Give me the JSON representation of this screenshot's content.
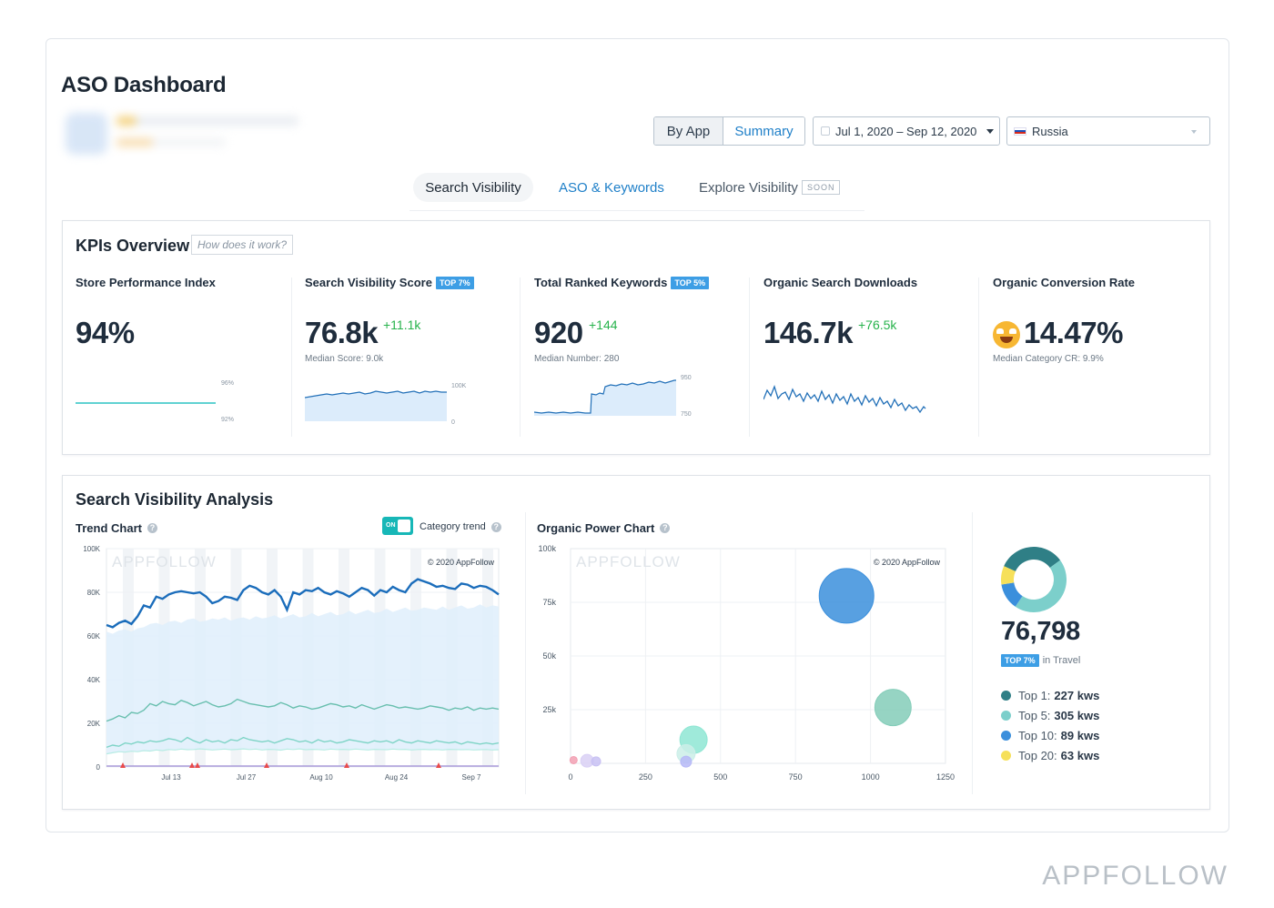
{
  "page_title": "ASO Dashboard",
  "view_toggle": {
    "by_app": "By App",
    "summary": "Summary"
  },
  "date_range": "Jul 1, 2020 – Sep 12, 2020",
  "country": "Russia",
  "tabs": {
    "search_visibility": "Search Visibility",
    "aso_keywords": "ASO & Keywords",
    "explore_visibility": "Explore Visibility",
    "soon": "SOON"
  },
  "kpi": {
    "title": "KPIs Overview",
    "how_link": "How does it work?",
    "store_performance": {
      "label": "Store Performance Index",
      "value": "94%",
      "axis_top": "96%",
      "axis_bottom": "92%"
    },
    "search_visibility": {
      "label": "Search Visibility Score",
      "badge": "TOP 7%",
      "value": "76.8k",
      "delta": "+11.1k",
      "median": "Median Score: 9.0k",
      "axis_top": "100K",
      "axis_bottom": "0"
    },
    "ranked_keywords": {
      "label": "Total Ranked Keywords",
      "badge": "TOP 5%",
      "value": "920",
      "delta": "+144",
      "median": "Median Number: 280",
      "axis_top": "950",
      "axis_bottom": "750"
    },
    "organic_downloads": {
      "label": "Organic Search Downloads",
      "value": "146.7k",
      "delta": "+76.5k"
    },
    "conversion_rate": {
      "label": "Organic Conversion Rate",
      "value": "14.47%",
      "median": "Median Category CR: 9.9%",
      "emoji": "star-struck-emoji"
    }
  },
  "analysis": {
    "title": "Search Visibility Analysis",
    "trend_chart": {
      "title": "Trend Chart",
      "toggle_label": "ON",
      "category_trend": "Category trend",
      "watermark": "APPFOLLOW",
      "copyright": "© 2020 AppFollow",
      "y_ticks": [
        "100K",
        "80K",
        "60K",
        "40K",
        "20K",
        "0"
      ],
      "x_ticks": [
        "Jul 13",
        "Jul 27",
        "Aug 10",
        "Aug 24",
        "Sep 7"
      ]
    },
    "power_chart": {
      "title": "Organic Power Chart",
      "watermark": "APPFOLLOW",
      "copyright": "© 2020 AppFollow",
      "y_ticks": [
        "100k",
        "75k",
        "50k",
        "25k"
      ],
      "x_ticks": [
        "0",
        "250",
        "500",
        "750",
        "1000",
        "1250"
      ]
    },
    "summary": {
      "value": "76,798",
      "badge": "TOP 7%",
      "category": "in Travel",
      "legend": [
        {
          "label": "Top 1:",
          "value": "227 kws",
          "color": "#2f7f86"
        },
        {
          "label": "Top 5:",
          "value": "305 kws",
          "color": "#7ccfcb"
        },
        {
          "label": "Top 10:",
          "value": "89 kws",
          "color": "#3b8fdc"
        },
        {
          "label": "Top 20:",
          "value": "63 kws",
          "color": "#f6e05a"
        }
      ]
    }
  },
  "chart_data": [
    {
      "type": "line",
      "title": "Trend Chart",
      "xlabel": "",
      "ylabel": "",
      "ylim": [
        0,
        100000
      ],
      "x_ticks": [
        "Jul 13",
        "Jul 27",
        "Aug 10",
        "Aug 24",
        "Sep 7"
      ],
      "series": [
        {
          "values": [
            65000,
            64000,
            66000,
            67000,
            65500,
            69000,
            74000,
            73000,
            78000,
            77000,
            79000,
            80000,
            80500,
            80000,
            79500,
            80000,
            78000,
            75000,
            76000,
            78000,
            77500,
            76500,
            81000,
            83000,
            82000,
            80000,
            79000,
            81000,
            78000,
            72000,
            80000,
            79000,
            81000,
            80500,
            82000,
            80000,
            79000,
            80500,
            79500,
            78000,
            80000,
            82000,
            81000,
            78500,
            81000,
            80000,
            82500,
            81000,
            80000,
            84000,
            86000,
            85000,
            84000,
            82500,
            83000,
            82000,
            81500,
            84000,
            83500,
            82000,
            83000,
            82500,
            81000,
            79000
          ]
        },
        {
          "values": [
            62000,
            61000,
            62500,
            63000,
            62000,
            63500,
            64000,
            65500,
            66000,
            65000,
            66500,
            67000,
            66000,
            67500,
            68000,
            66500,
            67000,
            68000,
            67500,
            68500,
            67000,
            68000,
            68500,
            67500,
            69000,
            68000,
            68500,
            69500,
            68000,
            69000,
            70000,
            68500,
            69000,
            70500,
            69000,
            70000,
            71000,
            69500,
            70000,
            71500,
            70000,
            71000,
            72000,
            70500,
            71000,
            72500,
            71000,
            72000,
            73000,
            71500,
            72000,
            73000,
            72500,
            72000,
            73500,
            72000,
            73000,
            74000,
            72500,
            73000,
            74500,
            73000,
            74000,
            73500
          ]
        },
        {
          "values": [
            21000,
            22000,
            23500,
            22500,
            25000,
            24500,
            26000,
            29000,
            28000,
            30000,
            29000,
            28500,
            30500,
            29500,
            28000,
            29000,
            30000,
            28500,
            27500,
            28000,
            29000,
            31000,
            30000,
            29000,
            28500,
            28000,
            27500,
            28000,
            29500,
            28500,
            27000,
            28000,
            27500,
            26500,
            27000,
            28000,
            29000,
            28500,
            27500,
            28000,
            27000,
            28500,
            27500,
            26500,
            27500,
            28500,
            28000,
            27000,
            27500,
            27000,
            26500,
            27000,
            28000,
            27500,
            27000,
            26000,
            27000,
            26500,
            27500,
            26000,
            27000,
            26500,
            27000,
            26500
          ]
        },
        {
          "values": [
            9000,
            10000,
            9500,
            11000,
            10500,
            11500,
            11000,
            12000,
            11500,
            12000,
            13000,
            12500,
            11500,
            13500,
            12000,
            11000,
            12500,
            11500,
            12000,
            11000,
            12500,
            12000,
            13500,
            12500,
            12000,
            11500,
            12000,
            11000,
            12000,
            13000,
            12500,
            11500,
            12000,
            11000,
            12500,
            11500,
            12000,
            11000,
            11500,
            12500,
            12000,
            11500,
            11000,
            12000,
            11500,
            12000,
            11000,
            12500,
            11500,
            11000,
            12000,
            11500,
            11000,
            12000,
            11500,
            11000,
            11500,
            10500,
            11500,
            11000,
            10500,
            11000,
            10500,
            11000
          ]
        },
        {
          "values": [
            6000,
            6500,
            7000,
            6800,
            7200,
            7000,
            7500,
            7300,
            7800,
            7500,
            8000,
            7800,
            8200,
            7900,
            8000,
            8300,
            8100,
            7800,
            8000,
            8200,
            7900,
            8100,
            8300,
            8000,
            8200,
            7800,
            8100,
            8000,
            7700,
            8200,
            8000,
            8300,
            7900,
            8100,
            8000,
            7800,
            8200,
            8000,
            8100,
            7900,
            8200,
            8000,
            7800,
            8100,
            8000,
            7900,
            8200,
            8000,
            8100,
            7800,
            8000,
            8100,
            7900,
            8000,
            7800,
            8100,
            8000,
            7900,
            8000,
            7800,
            7900,
            8000,
            7800,
            7900
          ]
        }
      ]
    },
    {
      "type": "scatter",
      "title": "Organic Power Chart",
      "xlabel": "",
      "ylabel": "",
      "xlim": [
        0,
        1250
      ],
      "ylim": [
        0,
        100000
      ],
      "points": [
        {
          "x": 920,
          "y": 78000,
          "size": 30,
          "color": "#3b8fdc"
        },
        {
          "x": 1075,
          "y": 26000,
          "size": 20,
          "color": "#84cdb9"
        },
        {
          "x": 410,
          "y": 11000,
          "size": 15,
          "color": "#8ee6d3"
        },
        {
          "x": 385,
          "y": 4500,
          "size": 10,
          "color": "#cbeee8"
        },
        {
          "x": 385,
          "y": 800,
          "size": 6,
          "color": "#b6b8f7"
        },
        {
          "x": 55,
          "y": 1200,
          "size": 7,
          "color": "#d9d0f5"
        },
        {
          "x": 85,
          "y": 900,
          "size": 5,
          "color": "#c8c1f3"
        },
        {
          "x": 10,
          "y": 1500,
          "size": 4,
          "color": "#f2a0b3"
        }
      ]
    },
    {
      "type": "pie",
      "title": "",
      "categories": [
        "Top 1",
        "Top 5",
        "Top 10",
        "Top 20"
      ],
      "values": [
        227,
        305,
        89,
        63
      ]
    }
  ]
}
